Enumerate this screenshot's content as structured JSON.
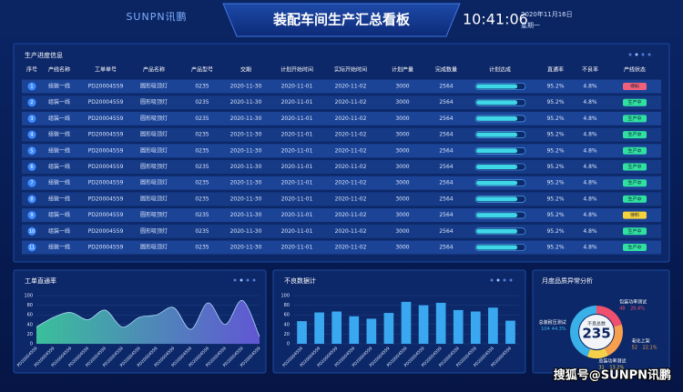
{
  "header": {
    "logo": "SUNPN讯鹏",
    "title": "装配车间生产汇总看板",
    "time": "10:41:06",
    "date": "2020年11月16日",
    "weekday": "星期一"
  },
  "table": {
    "title": "生产进度信息",
    "columns": [
      "序号",
      "产线名称",
      "工单单号",
      "产品名称",
      "产品型号",
      "交期",
      "计划开始时间",
      "实际开始时间",
      "计划产量",
      "完成数量",
      "计划达成",
      "直通率",
      "不良率",
      "产线状态"
    ],
    "rows": [
      [
        "1",
        "组装一线",
        "PD20004559",
        "圆形吸顶灯",
        "0235",
        "2020-11-30",
        "2020-11-01",
        "2020-11-02",
        "3000",
        "2564",
        85,
        "95.2%",
        "4.8%",
        "待料"
      ],
      [
        "2",
        "组装一线",
        "PD20004559",
        "圆形吸顶灯",
        "0235",
        "2020-11-30",
        "2020-11-01",
        "2020-11-02",
        "3000",
        "2564",
        85,
        "95.2%",
        "4.8%",
        "生产中"
      ],
      [
        "3",
        "组装一线",
        "PD20004559",
        "圆形吸顶灯",
        "0235",
        "2020-11-30",
        "2020-11-01",
        "2020-11-02",
        "3000",
        "2564",
        85,
        "95.2%",
        "4.8%",
        "生产中"
      ],
      [
        "4",
        "组装一线",
        "PD20004559",
        "圆形吸顶灯",
        "0235",
        "2020-11-30",
        "2020-11-01",
        "2020-11-02",
        "3000",
        "2564",
        85,
        "95.2%",
        "4.8%",
        "生产中"
      ],
      [
        "5",
        "组装一线",
        "PD20004559",
        "圆形吸顶灯",
        "0235",
        "2020-11-30",
        "2020-11-01",
        "2020-11-02",
        "3000",
        "2564",
        85,
        "95.2%",
        "4.8%",
        "生产中"
      ],
      [
        "6",
        "组装一线",
        "PD20004559",
        "圆形吸顶灯",
        "0235",
        "2020-11-30",
        "2020-11-01",
        "2020-11-02",
        "3000",
        "2564",
        85,
        "95.2%",
        "4.8%",
        "生产中"
      ],
      [
        "7",
        "组装一线",
        "PD20004559",
        "圆形吸顶灯",
        "0235",
        "2020-11-30",
        "2020-11-01",
        "2020-11-02",
        "3000",
        "2564",
        85,
        "95.2%",
        "4.8%",
        "生产中"
      ],
      [
        "8",
        "组装一线",
        "PD20004559",
        "圆形吸顶灯",
        "0235",
        "2020-11-30",
        "2020-11-01",
        "2020-11-02",
        "3000",
        "2564",
        85,
        "95.2%",
        "4.8%",
        "生产中"
      ],
      [
        "9",
        "组装一线",
        "PD20004559",
        "圆形吸顶灯",
        "0235",
        "2020-11-30",
        "2020-11-01",
        "2020-11-02",
        "3000",
        "2564",
        85,
        "95.2%",
        "4.8%",
        "待料"
      ],
      [
        "10",
        "组装一线",
        "PD20004559",
        "圆形吸顶灯",
        "0235",
        "2020-11-30",
        "2020-11-01",
        "2020-11-02",
        "3000",
        "2564",
        85,
        "95.2%",
        "4.8%",
        "生产中"
      ],
      [
        "11",
        "组装一线",
        "PD20004559",
        "圆形吸顶灯",
        "0235",
        "2020-11-30",
        "2020-11-01",
        "2020-11-02",
        "3000",
        "2564",
        85,
        "95.2%",
        "4.8%",
        "生产中"
      ]
    ],
    "status_colors": [
      "#f0607a",
      "#2fe0a0",
      "#2fe0a0",
      "#2fe0a0",
      "#2fe0a0",
      "#2fe0a0",
      "#2fe0a0",
      "#2fe0a0",
      "#f5d23c",
      "#2fe0a0",
      "#2fe0a0"
    ]
  },
  "charts": [
    {
      "type": "area",
      "title": "工单直通率",
      "categories": [
        "PD20004559",
        "PD20004559",
        "PD20004559",
        "PD20004559",
        "PD20004559",
        "PD20004559",
        "PD20004559",
        "PD20004559",
        "PD20004559",
        "PD20004559",
        "PD20004559",
        "PD20004559",
        "PD20004559",
        "PD20004559"
      ],
      "values": [
        35,
        55,
        65,
        50,
        70,
        35,
        55,
        60,
        75,
        30,
        85,
        40,
        90,
        15
      ],
      "ylim": [
        0,
        100
      ],
      "yticks": [
        0,
        20,
        40,
        60,
        80,
        100
      ],
      "color": "#3fd0a0",
      "color2": "#6a5be0"
    },
    {
      "type": "bar",
      "title": "不良数据计",
      "categories": [
        "PD20004559",
        "PD20004559",
        "PD20004559",
        "PD20004559",
        "PD20004559",
        "PD20004559",
        "PD20004559",
        "PD20004559",
        "PD20004559",
        "PD20004559",
        "PD20004559",
        "PD20004559",
        "PD20004559"
      ],
      "values": [
        47,
        65,
        67,
        57,
        52,
        64,
        87,
        80,
        85,
        70,
        67,
        75,
        48
      ],
      "ylim": [
        0,
        100
      ],
      "yticks": [
        0,
        20,
        40,
        60,
        80,
        100
      ],
      "color": "#3aa8f0"
    },
    {
      "type": "donut",
      "title": "月度品质异常分析",
      "center_label": "不良总数",
      "total": 235,
      "segments": [
        {
          "name": "包装功率测试",
          "count": 48,
          "percent": 20.4,
          "percent_label": "20.4%",
          "color": "#f0506e"
        },
        {
          "name": "老化上架",
          "count": 52,
          "percent": 22.1,
          "percent_label": "22.1%",
          "color": "#f6a04d"
        },
        {
          "name": "总装功率测试",
          "count": 31,
          "percent": 13.2,
          "percent_label": "13.2%",
          "color": "#f5d14b"
        },
        {
          "name": "总装耐压测试",
          "count": 104,
          "percent": 44.3,
          "percent_label": "44.3%",
          "color": "#3ab0e8"
        }
      ]
    }
  ],
  "watermark": "搜狐号@SUNPN讯鹏"
}
